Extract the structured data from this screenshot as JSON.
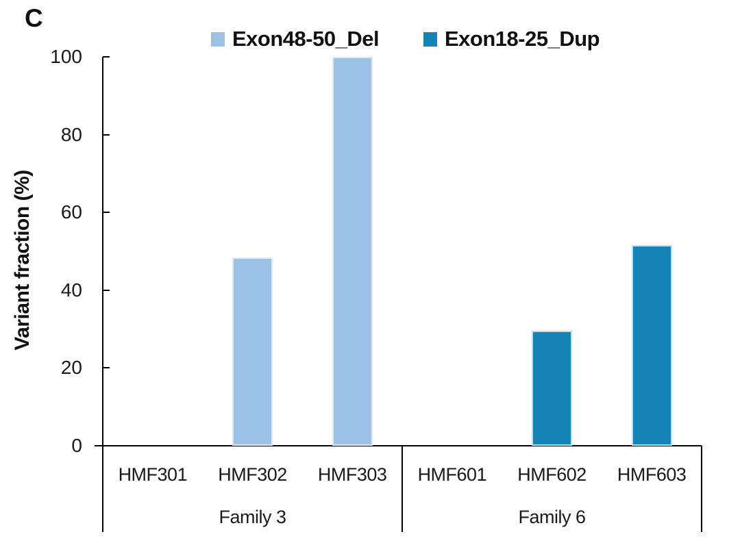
{
  "panel_label": "C",
  "legend": [
    {
      "label": "Exon48-50_Del",
      "color": "#9bc2e4"
    },
    {
      "label": "Exon18-25_Dup",
      "color": "#1384b5"
    }
  ],
  "y_axis": {
    "title": "Variant fraction (%)",
    "ticks": [
      0,
      20,
      40,
      60,
      80,
      100
    ]
  },
  "chart_data": {
    "type": "bar",
    "title": "",
    "xlabel": "",
    "ylabel": "Variant fraction (%)",
    "ylim": [
      0,
      100
    ],
    "yticks": [
      0,
      20,
      40,
      60,
      80,
      100
    ],
    "grid": false,
    "legend_position": "top",
    "groups": [
      {
        "label": "Family 3",
        "series": "Exon48-50_Del",
        "color": "#9bc2e4",
        "border_color": "#dcebf7",
        "bars": [
          {
            "category": "HMF301",
            "value": 0
          },
          {
            "category": "HMF302",
            "value": 48.5
          },
          {
            "category": "HMF303",
            "value": 100
          }
        ]
      },
      {
        "label": "Family 6",
        "series": "Exon18-25_Dup",
        "color": "#1384b5",
        "border_color": "#c2ddee",
        "bars": [
          {
            "category": "HMF601",
            "value": 0
          },
          {
            "category": "HMF602",
            "value": 29.5
          },
          {
            "category": "HMF603",
            "value": 51.5
          }
        ]
      }
    ]
  }
}
